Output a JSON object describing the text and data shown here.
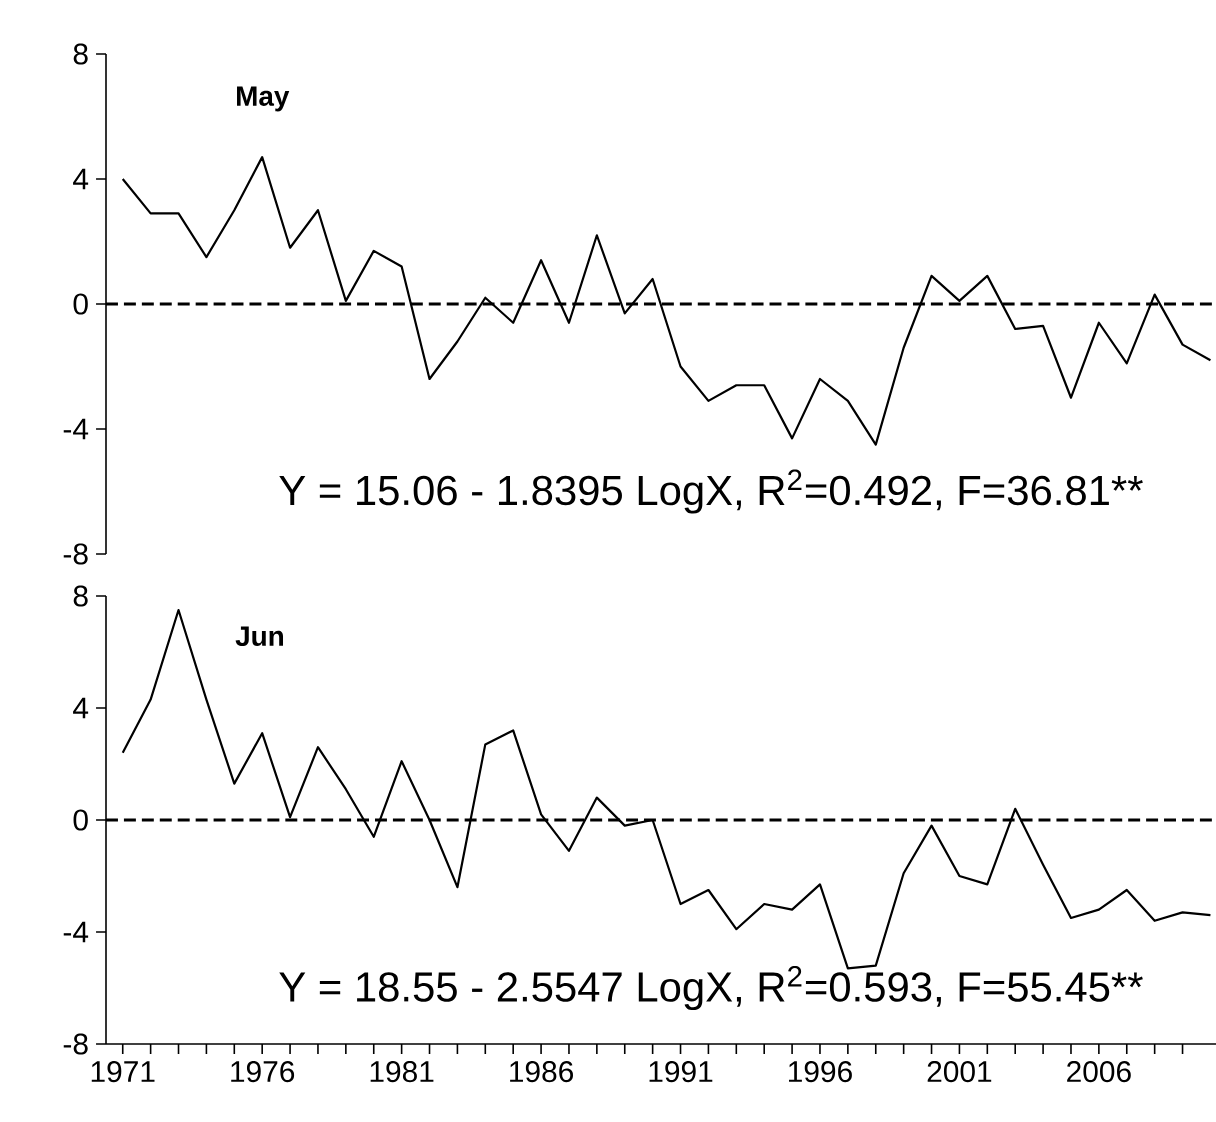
{
  "chart_data": [
    {
      "type": "line",
      "title": "May",
      "x": [
        1971,
        1972,
        1973,
        1974,
        1975,
        1976,
        1977,
        1978,
        1979,
        1980,
        1981,
        1982,
        1983,
        1984,
        1985,
        1986,
        1987,
        1988,
        1989,
        1990,
        1991,
        1992,
        1993,
        1994,
        1995,
        1996,
        1997,
        1998,
        1999,
        2000,
        2001,
        2002,
        2003,
        2004,
        2005,
        2006,
        2007,
        2008,
        2009,
        2010
      ],
      "series": [
        {
          "color": "#000000",
          "values": [
            4.0,
            2.9,
            2.9,
            1.5,
            3.0,
            4.7,
            1.8,
            3.0,
            0.1,
            1.7,
            1.2,
            -2.4,
            -1.2,
            0.2,
            -0.6,
            1.4,
            -0.6,
            2.2,
            -0.3,
            0.8,
            -2.0,
            -3.1,
            -2.6,
            -2.6,
            -4.3,
            -2.4,
            -3.1,
            -4.5,
            -1.4,
            0.9,
            0.1,
            0.9,
            -0.8,
            -0.7,
            -3.0,
            -0.6,
            -1.9,
            0.3,
            -1.3,
            -1.8
          ]
        }
      ],
      "xlim": [
        1970.4,
        2010.2
      ],
      "ylim": [
        -8,
        8
      ],
      "yticks": [
        -8,
        -4,
        0,
        4,
        8
      ],
      "tick_labels": "y",
      "line_style": "solid",
      "marker": "none",
      "ref_lines": [
        {
          "axis": "y",
          "value": 0,
          "line_style": "dashed",
          "color": "#000000"
        }
      ],
      "annotations": [
        "Y = 15.06 - 1.8395 LogX, R$^{2}$=0.492, F=36.81**"
      ]
    },
    {
      "type": "line",
      "title": "Jun",
      "x": [
        1971,
        1972,
        1973,
        1974,
        1975,
        1976,
        1977,
        1978,
        1979,
        1980,
        1981,
        1982,
        1983,
        1984,
        1985,
        1986,
        1987,
        1988,
        1989,
        1990,
        1991,
        1992,
        1993,
        1994,
        1995,
        1996,
        1997,
        1998,
        1999,
        2000,
        2001,
        2002,
        2003,
        2004,
        2005,
        2006,
        2007,
        2008,
        2009,
        2010
      ],
      "series": [
        {
          "color": "#000000",
          "values": [
            2.4,
            4.3,
            7.5,
            4.3,
            1.3,
            3.1,
            0.1,
            2.6,
            1.1,
            -0.6,
            2.1,
            0.0,
            -2.4,
            2.7,
            3.2,
            0.2,
            -1.1,
            0.8,
            -0.2,
            0.0,
            -3.0,
            -2.5,
            -3.9,
            -3.0,
            -3.2,
            -2.3,
            -5.3,
            -5.2,
            -1.9,
            -0.2,
            -2.0,
            -2.3,
            0.4,
            -1.6,
            -3.5,
            -3.2,
            -2.5,
            -3.6,
            -3.3,
            -3.4
          ]
        }
      ],
      "xlim": [
        1970.4,
        2010.2
      ],
      "ylim": [
        -8,
        8
      ],
      "yticks": [
        -8,
        -4,
        0,
        4,
        8
      ],
      "line_style": "solid",
      "marker": "none",
      "xticks": [
        1971,
        {
          "value": 1972,
          "label": null
        },
        {
          "value": 1973,
          "label": null
        },
        {
          "value": 1974,
          "label": null
        },
        {
          "value": 1975,
          "label": null
        },
        1976,
        {
          "value": 1977,
          "label": null
        },
        {
          "value": 1978,
          "label": null
        },
        {
          "value": 1979,
          "label": null
        },
        {
          "value": 1980,
          "label": null
        },
        1981,
        {
          "value": 1982,
          "label": null
        },
        {
          "value": 1983,
          "label": null
        },
        {
          "value": 1984,
          "label": null
        },
        {
          "value": 1985,
          "label": null
        },
        1986,
        {
          "value": 1987,
          "label": null
        },
        {
          "value": 1988,
          "label": null
        },
        {
          "value": 1989,
          "label": null
        },
        {
          "value": 1990,
          "label": null
        },
        1991,
        {
          "value": 1992,
          "label": null
        },
        {
          "value": 1993,
          "label": null
        },
        {
          "value": 1994,
          "label": null
        },
        {
          "value": 1995,
          "label": null
        },
        1996,
        {
          "value": 1997,
          "label": null
        },
        {
          "value": 1998,
          "label": null
        },
        {
          "value": 1999,
          "label": null
        },
        {
          "value": 2000,
          "label": null
        },
        2001,
        {
          "value": 2002,
          "label": null
        },
        {
          "value": 2003,
          "label": null
        },
        {
          "value": 2004,
          "label": null
        },
        {
          "value": 2005,
          "label": null
        },
        2006,
        {
          "value": 2007,
          "label": null
        },
        {
          "value": 2008,
          "label": null
        },
        {
          "value": 2009,
          "label": null
        }
      ],
      "ref_lines": [
        {
          "axis": "y",
          "value": 0,
          "line_style": "dashed",
          "color": "#000000"
        }
      ],
      "annotations": [
        "Y = 18.55 - 2.5547 LogX, R$^{2}$=0.593, F=55.45**"
      ]
    }
  ]
}
